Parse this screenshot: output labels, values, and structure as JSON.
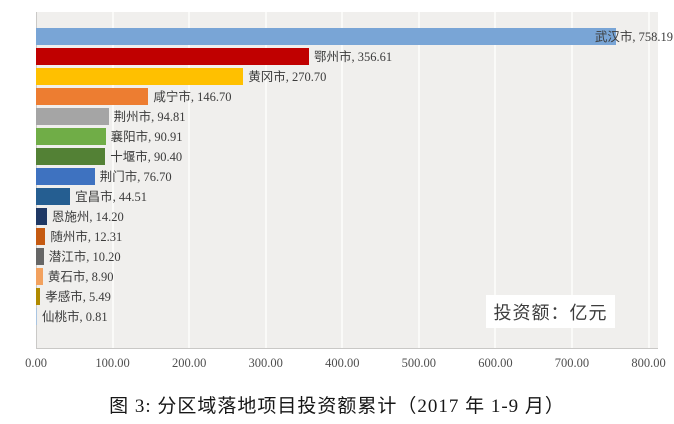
{
  "chart_data": {
    "type": "bar",
    "orientation": "horizontal",
    "caption": "图 3: 分区域落地项目投资额累计（2017 年 1-9 月）",
    "annotation": "投资额：亿元",
    "unit": "亿元",
    "categories": [
      "武汉市",
      "鄂州市",
      "黄冈市",
      "咸宁市",
      "荆州市",
      "襄阳市",
      "十堰市",
      "荆门市",
      "宜昌市",
      "恩施州",
      "随州市",
      "潜江市",
      "黄石市",
      "孝感市",
      "仙桃市"
    ],
    "values": [
      758.19,
      356.61,
      270.7,
      146.7,
      94.81,
      90.91,
      90.4,
      76.7,
      44.51,
      14.2,
      12.31,
      10.2,
      8.9,
      5.49,
      0.81
    ],
    "data_labels": [
      "武汉市, 758.19",
      "鄂州市, 356.61",
      "黄冈市, 270.70",
      "咸宁市, 146.70",
      "荆州市, 94.81",
      "襄阳市, 90.91",
      "十堰市, 90.40",
      "荆门市, 76.70",
      "宜昌市, 44.51",
      "恩施州, 14.20",
      "随州市, 12.31",
      "潜江市, 10.20",
      "黄石市, 8.90",
      "孝感市, 5.49",
      "仙桃市, 0.81"
    ],
    "bar_colors": [
      "#79a5d6",
      "#c00000",
      "#ffc000",
      "#ed7d31",
      "#a5a5a5",
      "#70ad47",
      "#538135",
      "#3e72c0",
      "#255e91",
      "#1f3864",
      "#c55a11",
      "#666666",
      "#f2a15e",
      "#b08a00",
      "#a9c5e2"
    ],
    "xlim": [
      0,
      800
    ],
    "x_ticks": [
      "0.00",
      "100.00",
      "200.00",
      "300.00",
      "400.00",
      "500.00",
      "600.00",
      "700.00",
      "800.00"
    ],
    "grid": "vertical",
    "legend": "none"
  }
}
